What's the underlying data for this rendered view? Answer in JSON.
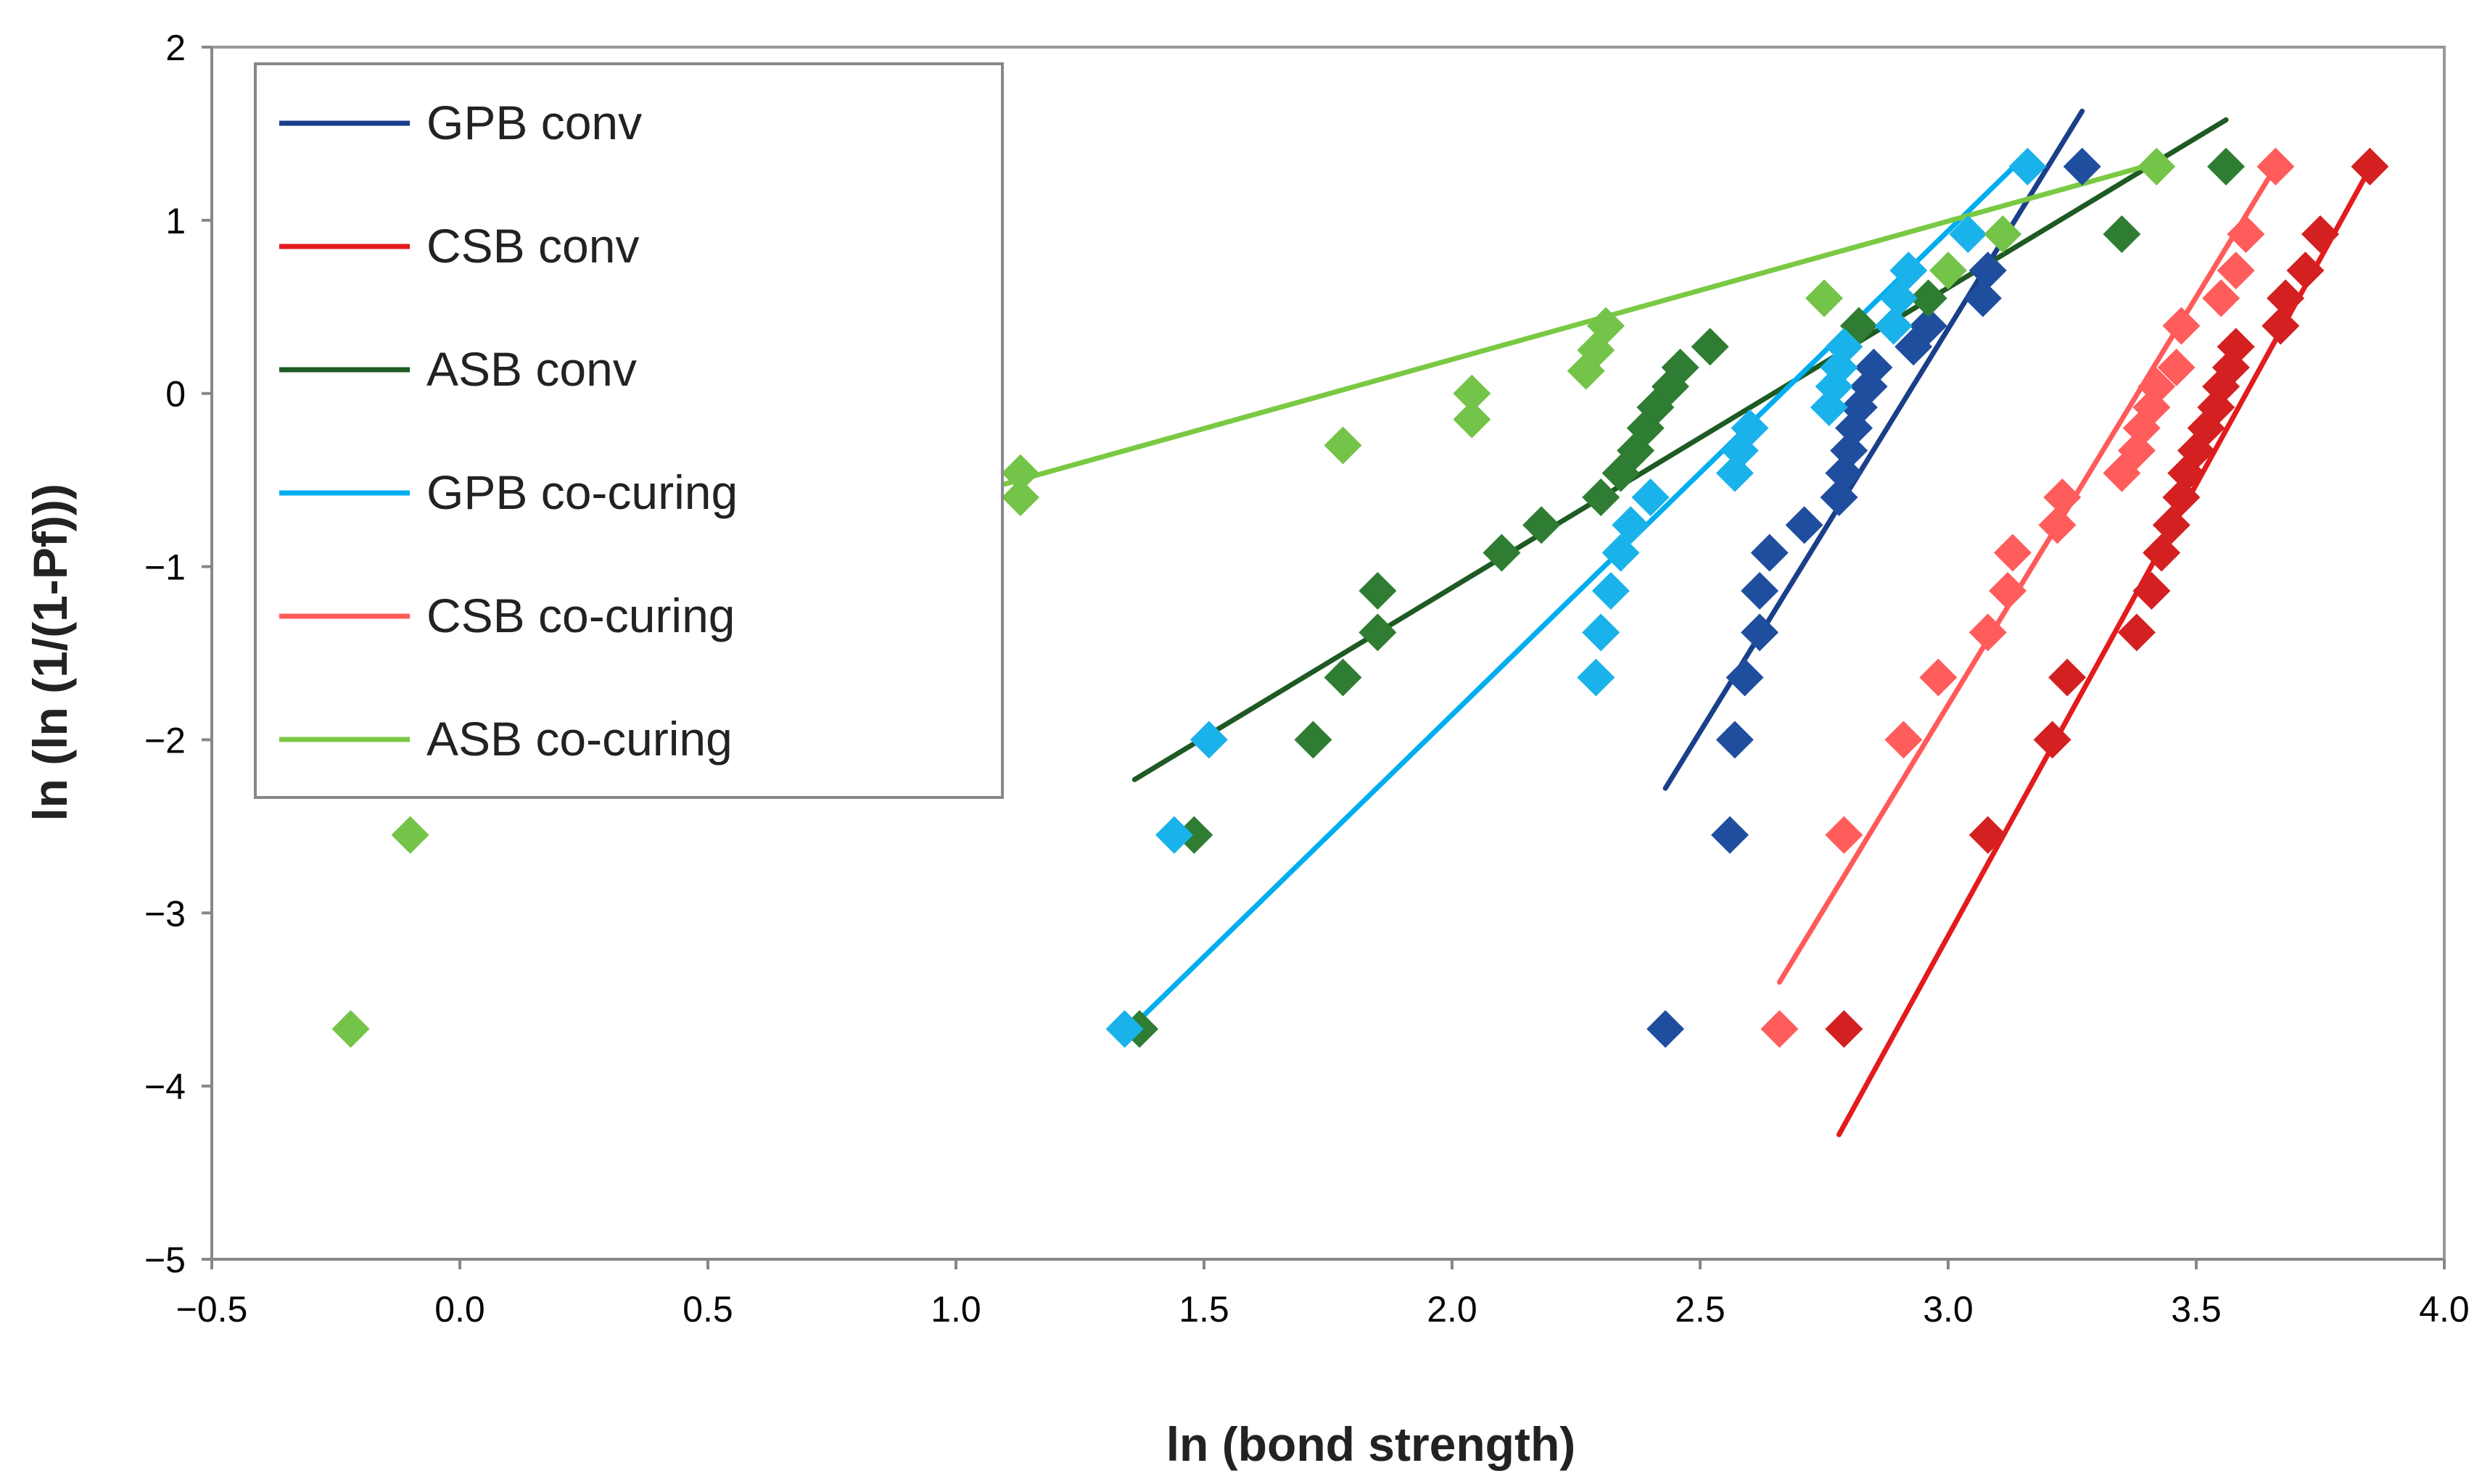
{
  "chart_data": {
    "type": "scatter",
    "title": "",
    "xlabel": "ln (bond strength)",
    "ylabel": "ln (ln (1/(1-Pf)))",
    "xlim": [
      -0.5,
      4.0
    ],
    "ylim": [
      -5,
      2
    ],
    "xticks": [
      "−0.5",
      "0.0",
      "0.5",
      "1.0",
      "1.5",
      "2.0",
      "2.5",
      "3.0",
      "3.5",
      "4.0"
    ],
    "yticks": [
      "−5",
      "−4",
      "−3",
      "−2",
      "−1",
      "0",
      "1",
      "2"
    ],
    "grid": false,
    "legend_position": "top-left",
    "series": [
      {
        "name": "GPB conv",
        "color": "#1a3f8a",
        "marker_color": "#1f4e9e",
        "fit_line": [
          [
            2.43,
            -2.28
          ],
          [
            3.27,
            1.63
          ]
        ],
        "points": [
          [
            2.43,
            -3.67
          ],
          [
            2.56,
            -2.55
          ],
          [
            2.57,
            -2.0
          ],
          [
            2.59,
            -1.64
          ],
          [
            2.62,
            -1.38
          ],
          [
            2.62,
            -1.14
          ],
          [
            2.64,
            -0.92
          ],
          [
            2.71,
            -0.76
          ],
          [
            2.78,
            -0.6
          ],
          [
            2.79,
            -0.46
          ],
          [
            2.8,
            -0.33
          ],
          [
            2.81,
            -0.2
          ],
          [
            2.82,
            -0.08
          ],
          [
            2.84,
            0.04
          ],
          [
            2.85,
            0.15
          ],
          [
            2.93,
            0.27
          ],
          [
            2.96,
            0.39
          ],
          [
            3.07,
            0.55
          ],
          [
            3.08,
            0.71
          ],
          [
            3.27,
            1.31
          ]
        ]
      },
      {
        "name": "CSB conv",
        "color": "#e41a1c",
        "marker_color": "#d42020",
        "fit_line": [
          [
            2.78,
            -4.28
          ],
          [
            3.85,
            1.3
          ]
        ],
        "points": [
          [
            2.79,
            -3.67
          ],
          [
            3.08,
            -2.55
          ],
          [
            3.21,
            -2.0
          ],
          [
            3.24,
            -1.64
          ],
          [
            3.38,
            -1.38
          ],
          [
            3.41,
            -1.14
          ],
          [
            3.43,
            -0.92
          ],
          [
            3.45,
            -0.76
          ],
          [
            3.47,
            -0.6
          ],
          [
            3.48,
            -0.46
          ],
          [
            3.5,
            -0.33
          ],
          [
            3.52,
            -0.2
          ],
          [
            3.54,
            -0.08
          ],
          [
            3.55,
            0.04
          ],
          [
            3.57,
            0.15
          ],
          [
            3.58,
            0.27
          ],
          [
            3.67,
            0.39
          ],
          [
            3.68,
            0.55
          ],
          [
            3.72,
            0.71
          ],
          [
            3.75,
            0.92
          ],
          [
            3.85,
            1.31
          ]
        ]
      },
      {
        "name": "ASB conv",
        "color": "#1e5a23",
        "marker_color": "#2e7d32",
        "fit_line": [
          [
            1.36,
            -2.23
          ],
          [
            3.56,
            1.58
          ]
        ],
        "points": [
          [
            1.37,
            -3.67
          ],
          [
            1.48,
            -2.55
          ],
          [
            1.72,
            -2.0
          ],
          [
            1.78,
            -1.64
          ],
          [
            1.85,
            -1.38
          ],
          [
            1.85,
            -1.14
          ],
          [
            2.1,
            -0.92
          ],
          [
            2.18,
            -0.76
          ],
          [
            2.3,
            -0.6
          ],
          [
            2.34,
            -0.46
          ],
          [
            2.37,
            -0.33
          ],
          [
            2.39,
            -0.2
          ],
          [
            2.41,
            -0.08
          ],
          [
            2.44,
            0.04
          ],
          [
            2.46,
            0.15
          ],
          [
            2.52,
            0.27
          ],
          [
            2.82,
            0.39
          ],
          [
            2.96,
            0.55
          ],
          [
            3.35,
            0.92
          ],
          [
            3.56,
            1.31
          ]
        ]
      },
      {
        "name": "GPB co-curing",
        "color": "#00aeef",
        "marker_color": "#1ab2ea",
        "fit_line": [
          [
            1.34,
            -3.7
          ],
          [
            3.14,
            1.33
          ]
        ],
        "points": [
          [
            1.34,
            -3.67
          ],
          [
            1.44,
            -2.55
          ],
          [
            1.51,
            -2.0
          ],
          [
            2.29,
            -1.64
          ],
          [
            2.3,
            -1.38
          ],
          [
            2.32,
            -1.14
          ],
          [
            2.34,
            -0.92
          ],
          [
            2.36,
            -0.76
          ],
          [
            2.4,
            -0.6
          ],
          [
            2.57,
            -0.46
          ],
          [
            2.58,
            -0.33
          ],
          [
            2.6,
            -0.2
          ],
          [
            2.76,
            -0.08
          ],
          [
            2.77,
            0.04
          ],
          [
            2.78,
            0.15
          ],
          [
            2.79,
            0.27
          ],
          [
            2.89,
            0.39
          ],
          [
            2.9,
            0.55
          ],
          [
            2.92,
            0.71
          ],
          [
            3.04,
            0.92
          ],
          [
            3.16,
            1.31
          ]
        ]
      },
      {
        "name": "CSB co-curing",
        "color": "#ff5a5a",
        "marker_color": "#ff5c5c",
        "fit_line": [
          [
            2.66,
            -3.4
          ],
          [
            3.66,
            1.31
          ]
        ],
        "points": [
          [
            2.66,
            -3.67
          ],
          [
            2.79,
            -2.55
          ],
          [
            2.91,
            -2.0
          ],
          [
            2.98,
            -1.64
          ],
          [
            3.08,
            -1.38
          ],
          [
            3.12,
            -1.14
          ],
          [
            3.13,
            -0.92
          ],
          [
            3.22,
            -0.76
          ],
          [
            3.23,
            -0.6
          ],
          [
            3.35,
            -0.46
          ],
          [
            3.38,
            -0.33
          ],
          [
            3.39,
            -0.2
          ],
          [
            3.41,
            -0.08
          ],
          [
            3.42,
            0.04
          ],
          [
            3.46,
            0.15
          ],
          [
            3.47,
            0.39
          ],
          [
            3.55,
            0.55
          ],
          [
            3.58,
            0.71
          ],
          [
            3.6,
            0.92
          ],
          [
            3.66,
            1.31
          ]
        ]
      },
      {
        "name": "ASB co-curing",
        "color": "#7ac943",
        "marker_color": "#74c449",
        "fit_line": [
          [
            0.0,
            -1.4
          ],
          [
            3.42,
            1.33
          ]
        ],
        "points": [
          [
            -0.22,
            -3.67
          ],
          [
            -0.1,
            -2.55
          ],
          [
            1.13,
            -0.6
          ],
          [
            1.13,
            -0.46
          ],
          [
            1.78,
            -0.3
          ],
          [
            2.04,
            -0.15
          ],
          [
            2.04,
            0.0
          ],
          [
            2.27,
            0.13
          ],
          [
            2.29,
            0.25
          ],
          [
            2.31,
            0.39
          ],
          [
            2.75,
            0.55
          ],
          [
            3.0,
            0.71
          ],
          [
            3.11,
            0.92
          ],
          [
            3.42,
            1.31
          ]
        ]
      }
    ]
  }
}
